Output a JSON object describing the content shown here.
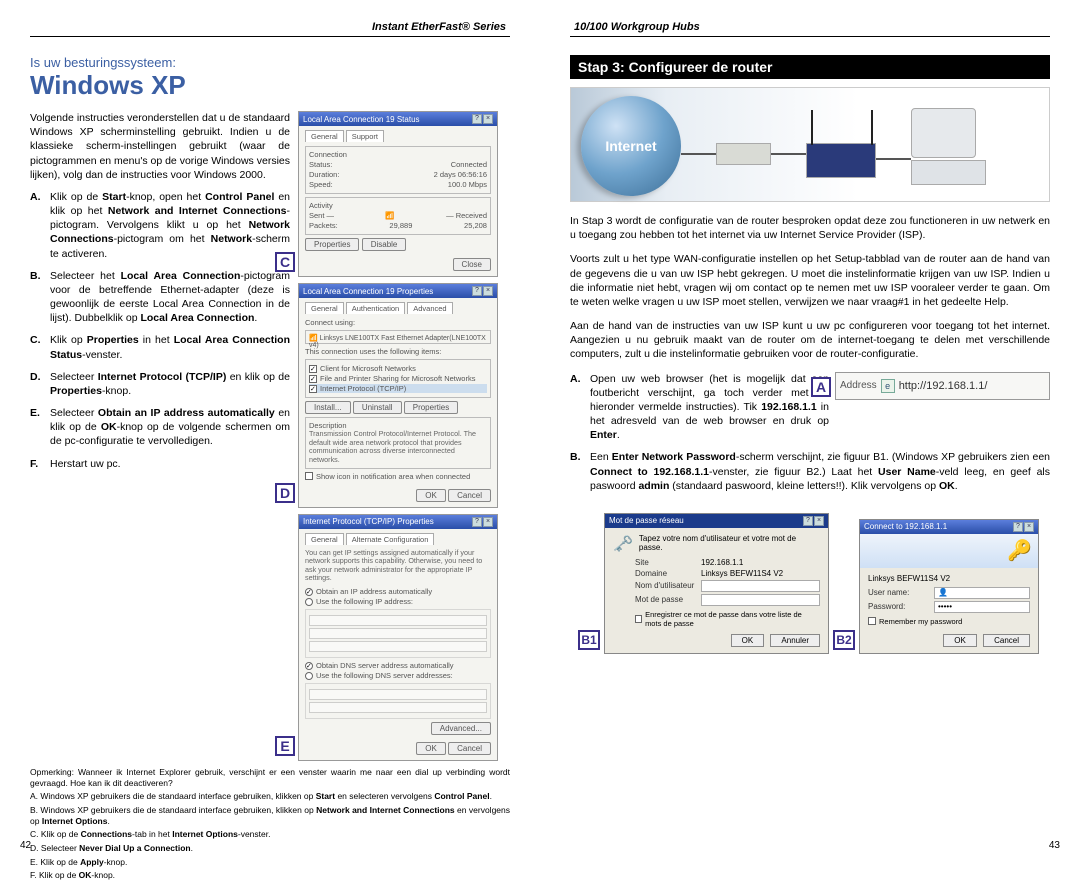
{
  "left": {
    "header": "Instant EtherFast® Series",
    "section_sub": "Is uw besturingssysteem:",
    "section_title": "Windows XP",
    "intro": "Volgende instructies veronderstellen dat u de standaard Windows XP scherminstelling gebruikt. Indien u de klassieke scherm-instellingen gebruikt (waar de pictogrammen en menu's op de vorige Windows versies lijken), volg dan de instructies voor Windows 2000.",
    "items": {
      "A": {
        "letter": "A.",
        "html": "Klik op de <b>Start</b>-knop, open het <b>Control Panel</b> en klik op het <b>Network and Internet Connections</b>-pictogram. Vervolgens klikt u op het <b>Network Connections</b>-pictogram om het <b>Network</b>-scherm te activeren."
      },
      "B": {
        "letter": "B.",
        "html": "Selecteer het <b>Local Area Connection</b>-pictogram voor de betreffende Ethernet-adapter (deze is gewoonlijk de eerste Local Area Connection in de lijst). Dubbelklik op <b>Local Area Connection</b>."
      },
      "C": {
        "letter": "C.",
        "html": "Klik op <b>Properties</b> in het <b>Local Area Connection Status</b>-venster."
      },
      "D": {
        "letter": "D.",
        "html": "Selecteer <b>Internet Protocol (TCP/IP)</b> en klik op de <b>Properties</b>-knop."
      },
      "E": {
        "letter": "E.",
        "html": "Selecteer <b>Obtain an IP address automatically</b> en klik op de <b>OK</b>-knop op de volgende schermen om de pc-configuratie te vervolledigen."
      },
      "F": {
        "letter": "F.",
        "text": "Herstart uw pc."
      }
    },
    "notes": [
      "Opmerking: Wanneer ik Internet Explorer gebruik, verschijnt er een venster waarin me naar een dial up verbinding wordt gevraagd. Hoe kan ik dit deactiveren?",
      "A. Windows XP gebruikers die de standaard interface gebruiken, klikken op <b>Start</b> en selecteren vervolgens <b>Control Panel</b>.",
      "B. Windows XP gebruikers die de standaard interface gebruiken, klikken op <b>Network and Internet Connections</b> en vervolgens op <b>Internet Options</b>.",
      "C. Klik op de <b>Connections</b>-tab in het <b>Internet Options</b>-venster.",
      "D. Selecteer <b>Never Dial Up a Connection</b>.",
      "E. Klik op de <b>Apply</b>-knop.",
      "F. Klik op de <b>OK</b>-knop."
    ],
    "pagenum": "42",
    "figs": {
      "C": {
        "label": "C",
        "title": "Local Area Connection 19 Status",
        "tabs": [
          "General",
          "Support"
        ],
        "rows": [
          [
            "Status:",
            "Connected"
          ],
          [
            "Duration:",
            "2 days 06:56:16"
          ],
          [
            "Speed:",
            "100.0 Mbps"
          ]
        ],
        "activity_hdr": "Activity",
        "activity": [
          [
            "Sent —",
            "— Received"
          ],
          [
            "Packets:",
            "29,889",
            "25,208"
          ]
        ],
        "btns": [
          "Properties",
          "Disable"
        ],
        "close": "Close"
      },
      "D": {
        "label": "D",
        "title": "Local Area Connection 19 Properties",
        "tabs": [
          "General",
          "Authentication",
          "Advanced"
        ],
        "connect": "Connect using:",
        "adapter": "Linksys LNE100TX Fast Ethernet Adapter(LNE100TX v4)",
        "uses": "This connection uses the following items:",
        "items": [
          "Client for Microsoft Networks",
          "File and Printer Sharing for Microsoft Networks",
          "Internet Protocol (TCP/IP)"
        ],
        "midbtns": [
          "Install...",
          "Uninstall",
          "Properties"
        ],
        "desc_hdr": "Description",
        "desc": "Transmission Control Protocol/Internet Protocol. The default wide area network protocol that provides communication across diverse interconnected networks.",
        "chk": "Show icon in notification area when connected",
        "btns": [
          "OK",
          "Cancel"
        ]
      },
      "E": {
        "label": "E",
        "title": "Internet Protocol (TCP/IP) Properties",
        "tabs": [
          "General",
          "Alternate Configuration"
        ],
        "desc": "You can get IP settings assigned automatically if your network supports this capability. Otherwise, you need to ask your network administrator for the appropriate IP settings.",
        "r1": "Obtain an IP address automatically",
        "r2": "Use the following IP address:",
        "r3": "Obtain DNS server address automatically",
        "r4": "Use the following DNS server addresses:",
        "adv": "Advanced...",
        "btns": [
          "OK",
          "Cancel"
        ]
      }
    }
  },
  "right": {
    "header": "10/100 Workgroup Hubs",
    "step_bar": "Stap 3: Configureer de router",
    "globe": "Internet",
    "p1": "In Stap 3 wordt de configuratie van de router besproken opdat deze zou functioneren in uw netwerk en u toegang zou hebben tot het internet via uw Internet Service Provider (ISP).",
    "p2": "Voorts zult u het type WAN-configuratie instellen op het Setup-tabblad van de router aan de hand van de gegevens die u van uw ISP hebt gekregen. U moet die instelinformatie krijgen van uw ISP. Indien u die informatie niet hebt, vragen wij om contact op te nemen met uw ISP vooraleer verder te gaan. Om te weten welke vragen u uw ISP moet stellen, verwijzen we naar vraag#1 in het gedeelte Help.",
    "p3": "Aan de hand van de instructies van uw ISP kunt u uw pc configureren voor toegang tot het internet. Aangezien u nu gebruik maakt van de router om de internet-toegang te delen met verschillende computers, zult u die instelinformatie gebruiken voor de router-configuratie.",
    "A_html": "Open uw web browser (het is mogelijk dat een foutbericht verschijnt, ga toch verder met de hieronder vermelde instructies). Tik <b>192.168.1.1</b> in het adresveld van de web browser en druk op <b>Enter</b>.",
    "B_html": "Een <b>Enter Network Password</b>-scherm verschijnt, zie figuur B1. (Windows XP gebruikers zien een <b>Connect to 192.168.1.1</b>-venster, zie figuur B2.) Laat het <b>User Name</b>-veld leeg, en geef als paswoord <b>admin</b> (standaard paswoord, kleine letters!!). Klik vervolgens op <b>OK</b>.",
    "A_letter": "A.",
    "B_letter": "B.",
    "addr": {
      "label": "A",
      "lbl": "Address",
      "url": "http://192.168.1.1/"
    },
    "B1": {
      "label": "B1",
      "title": "Mot de passe réseau",
      "intro": "Tapez votre nom d'utilisateur et votre mot de passe.",
      "rows": [
        [
          "Site",
          "192.168.1.1"
        ],
        [
          "Domaine",
          "Linksys BEFW11S4 V2"
        ],
        [
          "Nom d'utilisateur",
          ""
        ],
        [
          "Mot de passe",
          ""
        ]
      ],
      "chk": "Enregistrer ce mot de passe dans votre liste de mots de passe",
      "btns": [
        "OK",
        "Annuler"
      ]
    },
    "B2": {
      "label": "B2",
      "title": "Connect to 192.168.1.1",
      "sub": "Linksys BEFW11S4 V2",
      "rows": [
        [
          "User name:",
          ""
        ],
        [
          "Password:",
          "•••••"
        ]
      ],
      "chk": "Remember my password",
      "btns": [
        "OK",
        "Cancel"
      ]
    },
    "pagenum": "43"
  }
}
